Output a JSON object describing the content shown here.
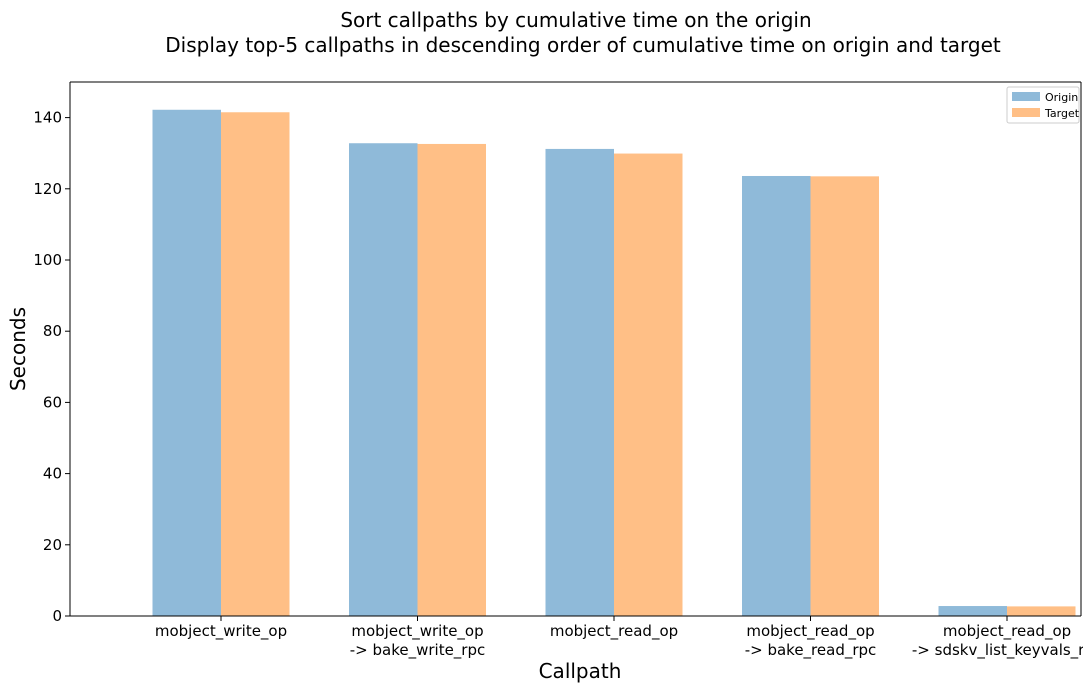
{
  "chart_data": {
    "type": "bar",
    "title": [
      "Sort callpaths by cumulative time on the origin",
      "Display top-5 callpaths in descending order of cumulative time on origin and target"
    ],
    "xlabel": "Callpath",
    "ylabel": "Seconds",
    "categories": [
      [
        "mobject_write_op"
      ],
      [
        "mobject_write_op",
        "-> bake_write_rpc"
      ],
      [
        "mobject_read_op"
      ],
      [
        "mobject_read_op",
        "-> bake_read_rpc"
      ],
      [
        "mobject_read_op",
        "-> sdskv_list_keyvals_rpc"
      ]
    ],
    "series": [
      {
        "name": "Origin",
        "color": "#8fbad9",
        "values": [
          142.2,
          132.8,
          131.2,
          123.6,
          2.8
        ]
      },
      {
        "name": "Target",
        "color": "#ffbf86",
        "values": [
          141.5,
          132.6,
          129.9,
          123.5,
          2.7
        ]
      }
    ],
    "ylim": [
      0,
      150
    ],
    "yticks": [
      0,
      20,
      40,
      60,
      80,
      100,
      120,
      140
    ],
    "grid": false,
    "legend_position": "top-right"
  }
}
